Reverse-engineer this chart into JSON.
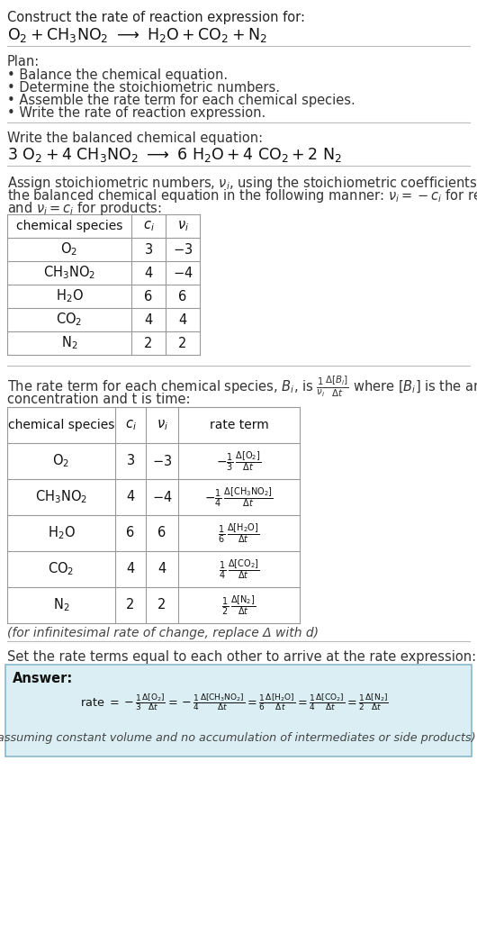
{
  "bg_color": "#ffffff",
  "text_color": "#333333",
  "table_border": "#999999",
  "answer_box_color": "#daeef3",
  "answer_box_border": "#89b8c9",
  "title_text": "Construct the rate of reaction expression for:",
  "plan_header": "Plan:",
  "plan_items": [
    "• Balance the chemical equation.",
    "• Determine the stoichiometric numbers.",
    "• Assemble the rate term for each chemical species.",
    "• Write the rate of reaction expression."
  ],
  "balanced_header": "Write the balanced chemical equation:",
  "set_equal_text": "Set the rate terms equal to each other to arrive at the rate expression:",
  "infinitesimal_note": "(for infinitesimal rate of change, replace Δ with d)",
  "assuming_note": "(assuming constant volume and no accumulation of intermediates or side products)"
}
